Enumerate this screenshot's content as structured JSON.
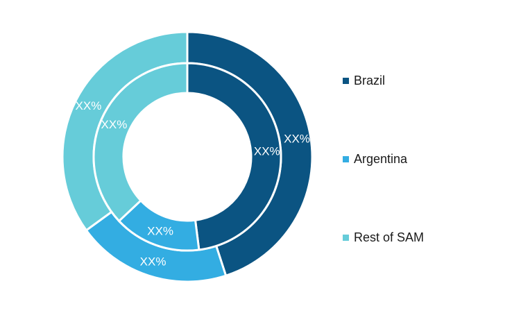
{
  "chart_data": {
    "type": "donut",
    "legend_position": "right",
    "categories": [
      "Brazil",
      "Argentina",
      "Rest of SAM"
    ],
    "colors": [
      "#0b5482",
      "#33ade2",
      "#66ccd9"
    ],
    "rings": [
      {
        "ring": "outer",
        "values": [
          0.45,
          0.2,
          0.35
        ],
        "labels": [
          "XX%",
          "XX%",
          "XX%"
        ]
      },
      {
        "ring": "inner",
        "values": [
          0.48,
          0.15,
          0.37
        ],
        "labels": [
          "XX%",
          "XX%",
          "XX%"
        ]
      }
    ]
  }
}
